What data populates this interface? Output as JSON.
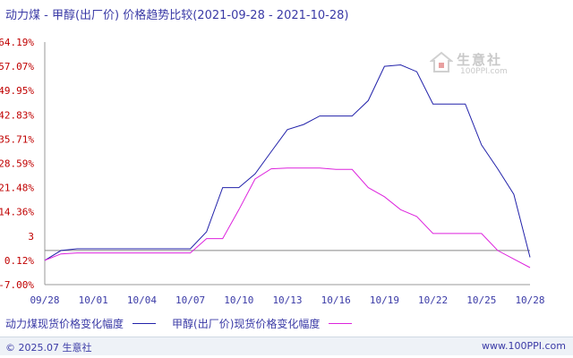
{
  "title": "动力煤 - 甲醇(出厂价) 价格趋势比较(2021-09-28 - 2021-10-28)",
  "legend": [
    {
      "label": "动力煤现货价格变化幅度",
      "color": "#2222aa"
    },
    {
      "label": "甲醇(出厂价)现货价格变化幅度",
      "color": "#dd22dd"
    }
  ],
  "footer": {
    "left": "© 2025.07 生意社",
    "right": "www.100PPI.com"
  },
  "watermark": {
    "name": "生意社",
    "url": "100PPI.com"
  },
  "chart_data": {
    "type": "line",
    "title": "动力煤 - 甲醇(出厂价) 价格趋势比较(2021-09-28 - 2021-10-28)",
    "xlabel": "",
    "ylabel": "",
    "x_ticks": [
      "09/28",
      "10/01",
      "10/04",
      "10/07",
      "10/10",
      "10/13",
      "10/16",
      "10/19",
      "10/22",
      "10/25",
      "10/28"
    ],
    "y_ticks": [
      "64.19%",
      "57.07%",
      "49.95%",
      "42.83%",
      "35.71%",
      "28.59%",
      "21.48%",
      "14.36%",
      "3",
      "0.12%",
      "-7.00%"
    ],
    "ylim": [
      -7.0,
      64.19
    ],
    "xlim": [
      0,
      30
    ],
    "reference_line": 3.0,
    "grid": false,
    "legend_position": "bottom",
    "series": [
      {
        "name": "动力煤现货价格变化幅度",
        "color": "#2222aa",
        "points": [
          [
            0,
            0.12
          ],
          [
            1,
            3.0
          ],
          [
            2,
            3.5
          ],
          [
            3,
            3.5
          ],
          [
            4,
            3.5
          ],
          [
            5,
            3.5
          ],
          [
            6,
            3.5
          ],
          [
            7,
            3.5
          ],
          [
            8,
            3.5
          ],
          [
            9,
            3.5
          ],
          [
            10,
            8.5
          ],
          [
            11,
            21.48
          ],
          [
            12,
            21.48
          ],
          [
            13,
            25.5
          ],
          [
            14,
            32.0
          ],
          [
            15,
            38.5
          ],
          [
            16,
            40.0
          ],
          [
            17,
            42.5
          ],
          [
            18,
            42.5
          ],
          [
            19,
            42.5
          ],
          [
            20,
            47.0
          ],
          [
            21,
            57.07
          ],
          [
            22,
            57.5
          ],
          [
            23,
            55.5
          ],
          [
            24,
            46.0
          ],
          [
            25,
            46.0
          ],
          [
            26,
            46.0
          ],
          [
            27,
            34.0
          ],
          [
            28,
            27.0
          ],
          [
            29,
            19.5
          ],
          [
            30,
            1.0
          ]
        ]
      },
      {
        "name": "甲醇(出厂价)现货价格变化幅度",
        "color": "#dd22dd",
        "points": [
          [
            0,
            0.12
          ],
          [
            1,
            2.0
          ],
          [
            2,
            2.3
          ],
          [
            3,
            2.3
          ],
          [
            4,
            2.3
          ],
          [
            5,
            2.3
          ],
          [
            6,
            2.3
          ],
          [
            7,
            2.3
          ],
          [
            8,
            2.3
          ],
          [
            9,
            2.3
          ],
          [
            10,
            6.5
          ],
          [
            11,
            6.5
          ],
          [
            12,
            15.0
          ],
          [
            13,
            24.0
          ],
          [
            14,
            27.0
          ],
          [
            15,
            27.2
          ],
          [
            16,
            27.2
          ],
          [
            17,
            27.2
          ],
          [
            18,
            26.8
          ],
          [
            19,
            26.8
          ],
          [
            20,
            21.48
          ],
          [
            21,
            18.8
          ],
          [
            22,
            15.0
          ],
          [
            23,
            13.0
          ],
          [
            24,
            8.0
          ],
          [
            25,
            8.0
          ],
          [
            26,
            8.0
          ],
          [
            27,
            8.0
          ],
          [
            28,
            3.0
          ],
          [
            29,
            0.5
          ],
          [
            30,
            -2.0
          ]
        ]
      }
    ]
  }
}
